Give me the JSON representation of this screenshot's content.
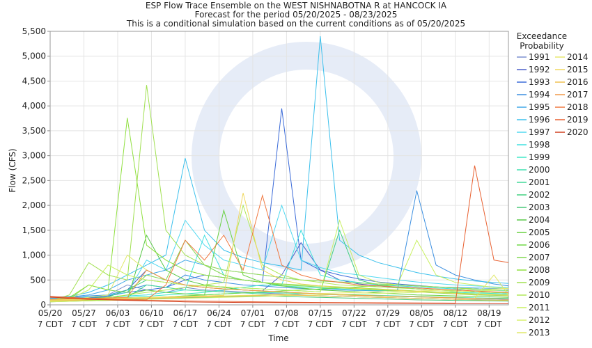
{
  "chart_data": {
    "type": "line",
    "title": "ESP Flow Trace Ensemble on the WEST NISHNABOTNA R at HANCOCK IA",
    "subtitle": "Forecast for the period 05/20/2025 - 08/23/2025",
    "note": "This is a conditional simulation based on the current conditions as of 05/20/2025",
    "x_label": "Time",
    "y_label": "Flow (CFS)",
    "legend_title": "Exceedance Probability",
    "grid": true,
    "x": [
      0,
      4,
      8,
      12,
      16,
      20,
      24,
      28,
      32,
      36,
      40,
      44,
      48,
      52,
      56,
      60,
      64,
      68,
      72,
      76,
      80,
      84,
      88,
      92,
      95
    ],
    "xlim": [
      0,
      95
    ],
    "xticks": [
      {
        "value": 0,
        "label": "05/20 7 CDT"
      },
      {
        "value": 7,
        "label": "05/27 7 CDT"
      },
      {
        "value": 14,
        "label": "06/03 7 CDT"
      },
      {
        "value": 21,
        "label": "06/10 7 CDT"
      },
      {
        "value": 28,
        "label": "06/17 7 CDT"
      },
      {
        "value": 35,
        "label": "06/24 7 CDT"
      },
      {
        "value": 42,
        "label": "07/01 7 CDT"
      },
      {
        "value": 49,
        "label": "07/08 7 CDT"
      },
      {
        "value": 56,
        "label": "07/15 7 CDT"
      },
      {
        "value": 63,
        "label": "07/22 7 CDT"
      },
      {
        "value": 70,
        "label": "07/29 7 CDT"
      },
      {
        "value": 77,
        "label": "08/05 7 CDT"
      },
      {
        "value": 84,
        "label": "08/12 7 CDT"
      },
      {
        "value": 91,
        "label": "08/19 7 CDT"
      }
    ],
    "ylim": [
      0,
      5500
    ],
    "yticks": [
      0,
      500,
      {
        "value": 1000,
        "label": "1,000"
      },
      {
        "value": 1500,
        "label": "1,500"
      },
      {
        "value": 2000,
        "label": "2,000"
      },
      {
        "value": 2500,
        "label": "2,500"
      },
      {
        "value": 3000,
        "label": "3,000"
      },
      {
        "value": 3500,
        "label": "3,500"
      },
      {
        "value": 4000,
        "label": "4,000"
      },
      {
        "value": 4500,
        "label": "4,500"
      },
      {
        "value": 5000,
        "label": "5,000"
      },
      {
        "value": 5500,
        "label": "5,500"
      }
    ],
    "series": [
      {
        "name": "1991",
        "color": "#7a8fd0",
        "values": [
          100,
          120,
          150,
          200,
          400,
          300,
          250,
          350,
          300,
          280,
          260,
          240,
          220,
          200,
          180,
          170,
          160,
          150,
          140,
          130,
          120,
          110,
          105,
          100,
          95
        ]
      },
      {
        "name": "1992",
        "color": "#4a5fc8",
        "values": [
          110,
          130,
          140,
          160,
          300,
          700,
          500,
          400,
          350,
          320,
          300,
          280,
          600,
          1250,
          700,
          500,
          420,
          380,
          350,
          320,
          300,
          280,
          260,
          250,
          240
        ]
      },
      {
        "name": "1993",
        "color": "#3a6ad8",
        "values": [
          120,
          140,
          150,
          180,
          250,
          300,
          350,
          500,
          600,
          550,
          500,
          450,
          3950,
          900,
          700,
          600,
          520,
          460,
          420,
          390,
          360,
          340,
          320,
          300,
          290
        ]
      },
      {
        "name": "1994",
        "color": "#3a8ee0",
        "values": [
          130,
          150,
          180,
          200,
          300,
          400,
          350,
          600,
          500,
          450,
          400,
          380,
          350,
          330,
          310,
          300,
          290,
          280,
          300,
          2300,
          800,
          600,
          500,
          420,
          380
        ]
      },
      {
        "name": "1995",
        "color": "#40a8e8",
        "values": [
          140,
          160,
          200,
          300,
          500,
          600,
          700,
          900,
          800,
          700,
          650,
          600,
          550,
          500,
          480,
          460,
          440,
          420,
          400,
          380,
          360,
          350,
          340,
          330,
          320
        ]
      },
      {
        "name": "1996",
        "color": "#3cc0ec",
        "values": [
          150,
          170,
          250,
          400,
          600,
          800,
          1000,
          2950,
          1500,
          1100,
          950,
          850,
          780,
          700,
          5400,
          1300,
          1000,
          850,
          750,
          650,
          580,
          520,
          480,
          450,
          430
        ]
      },
      {
        "name": "1997",
        "color": "#50d8f0",
        "values": [
          120,
          130,
          160,
          200,
          250,
          900,
          700,
          1700,
          1200,
          900,
          800,
          700,
          2000,
          900,
          750,
          650,
          600,
          550,
          500,
          460,
          430,
          400,
          380,
          360,
          350
        ]
      },
      {
        "name": "1998",
        "color": "#40e0e0",
        "values": [
          100,
          110,
          120,
          150,
          180,
          200,
          250,
          300,
          1400,
          600,
          500,
          450,
          400,
          1500,
          600,
          500,
          450,
          400,
          380,
          360,
          340,
          320,
          300,
          290,
          280
        ]
      },
      {
        "name": "1999",
        "color": "#40e8c8",
        "values": [
          90,
          100,
          110,
          130,
          150,
          170,
          200,
          220,
          250,
          300,
          350,
          400,
          380,
          360,
          340,
          320,
          300,
          290,
          280,
          270,
          260,
          250,
          240,
          230,
          220
        ]
      },
      {
        "name": "2000",
        "color": "#40e0b0",
        "values": [
          80,
          90,
          100,
          110,
          120,
          140,
          160,
          180,
          200,
          220,
          240,
          250,
          240,
          230,
          220,
          210,
          200,
          190,
          180,
          170,
          160,
          150,
          140,
          135,
          130
        ]
      },
      {
        "name": "2001",
        "color": "#40d898",
        "values": [
          90,
          100,
          110,
          130,
          150,
          400,
          350,
          300,
          280,
          260,
          240,
          220,
          200,
          190,
          180,
          170,
          160,
          150,
          140,
          130,
          120,
          110,
          100,
          95,
          90
        ]
      },
      {
        "name": "2002",
        "color": "#40d080",
        "values": [
          100,
          110,
          130,
          160,
          300,
          500,
          450,
          400,
          380,
          360,
          340,
          320,
          300,
          280,
          260,
          1500,
          500,
          400,
          350,
          320,
          300,
          280,
          260,
          250,
          240
        ]
      },
      {
        "name": "2003",
        "color": "#48c878",
        "values": [
          70,
          80,
          90,
          100,
          110,
          120,
          130,
          140,
          150,
          160,
          170,
          180,
          170,
          160,
          150,
          140,
          130,
          120,
          110,
          100,
          95,
          90,
          85,
          80,
          75
        ]
      },
      {
        "name": "2004",
        "color": "#58c848",
        "values": [
          60,
          70,
          80,
          90,
          100,
          1400,
          700,
          500,
          400,
          350,
          300,
          280,
          260,
          240,
          220,
          200,
          190,
          180,
          170,
          160,
          150,
          140,
          130,
          120,
          115
        ]
      },
      {
        "name": "2005",
        "color": "#68d040",
        "values": [
          80,
          90,
          100,
          120,
          200,
          300,
          250,
          220,
          200,
          1900,
          600,
          450,
          380,
          340,
          300,
          280,
          260,
          240,
          220,
          200,
          190,
          180,
          170,
          160,
          150
        ]
      },
      {
        "name": "2006",
        "color": "#70d848",
        "values": [
          70,
          80,
          90,
          100,
          120,
          140,
          160,
          180,
          200,
          220,
          240,
          260,
          280,
          300,
          320,
          340,
          360,
          380,
          400,
          380,
          360,
          340,
          320,
          300,
          290
        ]
      },
      {
        "name": "2007",
        "color": "#80d850",
        "values": [
          100,
          120,
          400,
          300,
          250,
          600,
          500,
          1300,
          800,
          600,
          500,
          450,
          400,
          380,
          360,
          340,
          320,
          300,
          280,
          260,
          240,
          220,
          200,
          190,
          180
        ]
      },
      {
        "name": "2008",
        "color": "#90e040",
        "values": [
          90,
          150,
          400,
          300,
          3760,
          1200,
          900,
          700,
          600,
          550,
          500,
          450,
          420,
          400,
          380,
          360,
          340,
          320,
          300,
          280,
          260,
          240,
          220,
          210,
          200
        ]
      },
      {
        "name": "2009",
        "color": "#a0e050",
        "values": [
          80,
          200,
          850,
          600,
          500,
          4420,
          1500,
          1000,
          800,
          700,
          650,
          600,
          550,
          500,
          480,
          460,
          440,
          420,
          400,
          380,
          360,
          340,
          320,
          300,
          290
        ]
      },
      {
        "name": "2010",
        "color": "#b0e858",
        "values": [
          70,
          80,
          100,
          150,
          200,
          250,
          300,
          350,
          400,
          450,
          2000,
          800,
          600,
          500,
          450,
          400,
          380,
          360,
          340,
          320,
          300,
          280,
          260,
          250,
          240
        ]
      },
      {
        "name": "2011",
        "color": "#c8f060",
        "values": [
          100,
          120,
          300,
          800,
          600,
          500,
          450,
          400,
          380,
          360,
          340,
          320,
          300,
          280,
          260,
          1700,
          600,
          450,
          400,
          1300,
          600,
          450,
          400,
          350,
          330
        ]
      },
      {
        "name": "2012",
        "color": "#d8f070",
        "values": [
          60,
          70,
          80,
          90,
          100,
          110,
          120,
          130,
          140,
          150,
          160,
          170,
          180,
          190,
          200,
          210,
          220,
          230,
          240,
          250,
          260,
          270,
          280,
          290,
          300
        ]
      },
      {
        "name": "2013",
        "color": "#e0e868",
        "values": [
          80,
          100,
          150,
          200,
          1000,
          700,
          500,
          400,
          350,
          320,
          300,
          280,
          260,
          240,
          220,
          200,
          190,
          180,
          170,
          160,
          150,
          140,
          130,
          600,
          200
        ]
      },
      {
        "name": "2014",
        "color": "#e8e870",
        "values": [
          90,
          100,
          110,
          120,
          130,
          140,
          150,
          160,
          170,
          180,
          190,
          200,
          210,
          220,
          230,
          240,
          250,
          260,
          270,
          280,
          290,
          300,
          310,
          320,
          330
        ]
      },
      {
        "name": "2015",
        "color": "#f0d860",
        "values": [
          100,
          110,
          120,
          130,
          140,
          150,
          160,
          170,
          180,
          190,
          2250,
          700,
          500,
          420,
          380,
          350,
          330,
          310,
          290,
          270,
          250,
          230,
          210,
          200,
          190
        ]
      },
      {
        "name": "2016",
        "color": "#f0c050",
        "values": [
          80,
          90,
          100,
          110,
          120,
          130,
          140,
          150,
          160,
          170,
          180,
          190,
          200,
          190,
          180,
          170,
          160,
          150,
          140,
          130,
          120,
          110,
          100,
          95,
          90
        ]
      },
      {
        "name": "2017",
        "color": "#f09848",
        "values": [
          110,
          120,
          130,
          140,
          150,
          700,
          500,
          400,
          350,
          320,
          300,
          280,
          260,
          240,
          220,
          200,
          190,
          180,
          170,
          160,
          150,
          140,
          130,
          120,
          110
        ]
      },
      {
        "name": "2018",
        "color": "#f07840",
        "values": [
          150,
          140,
          130,
          120,
          110,
          100,
          400,
          1300,
          900,
          1400,
          700,
          2200,
          800,
          600,
          500,
          450,
          400,
          380,
          360,
          340,
          320,
          300,
          280,
          260,
          250
        ]
      },
      {
        "name": "2019",
        "color": "#e86030",
        "values": [
          170,
          150,
          130,
          110,
          100,
          90,
          85,
          80,
          75,
          70,
          65,
          60,
          55,
          50,
          48,
          46,
          44,
          42,
          40,
          38,
          36,
          35,
          2800,
          900,
          850
        ]
      },
      {
        "name": "2020",
        "color": "#d04020",
        "values": [
          160,
          130,
          110,
          100,
          90,
          80,
          70,
          60,
          55,
          50,
          48,
          46,
          44,
          42,
          40,
          38,
          36,
          34,
          32,
          30,
          28,
          26,
          25,
          24,
          23
        ]
      }
    ]
  }
}
